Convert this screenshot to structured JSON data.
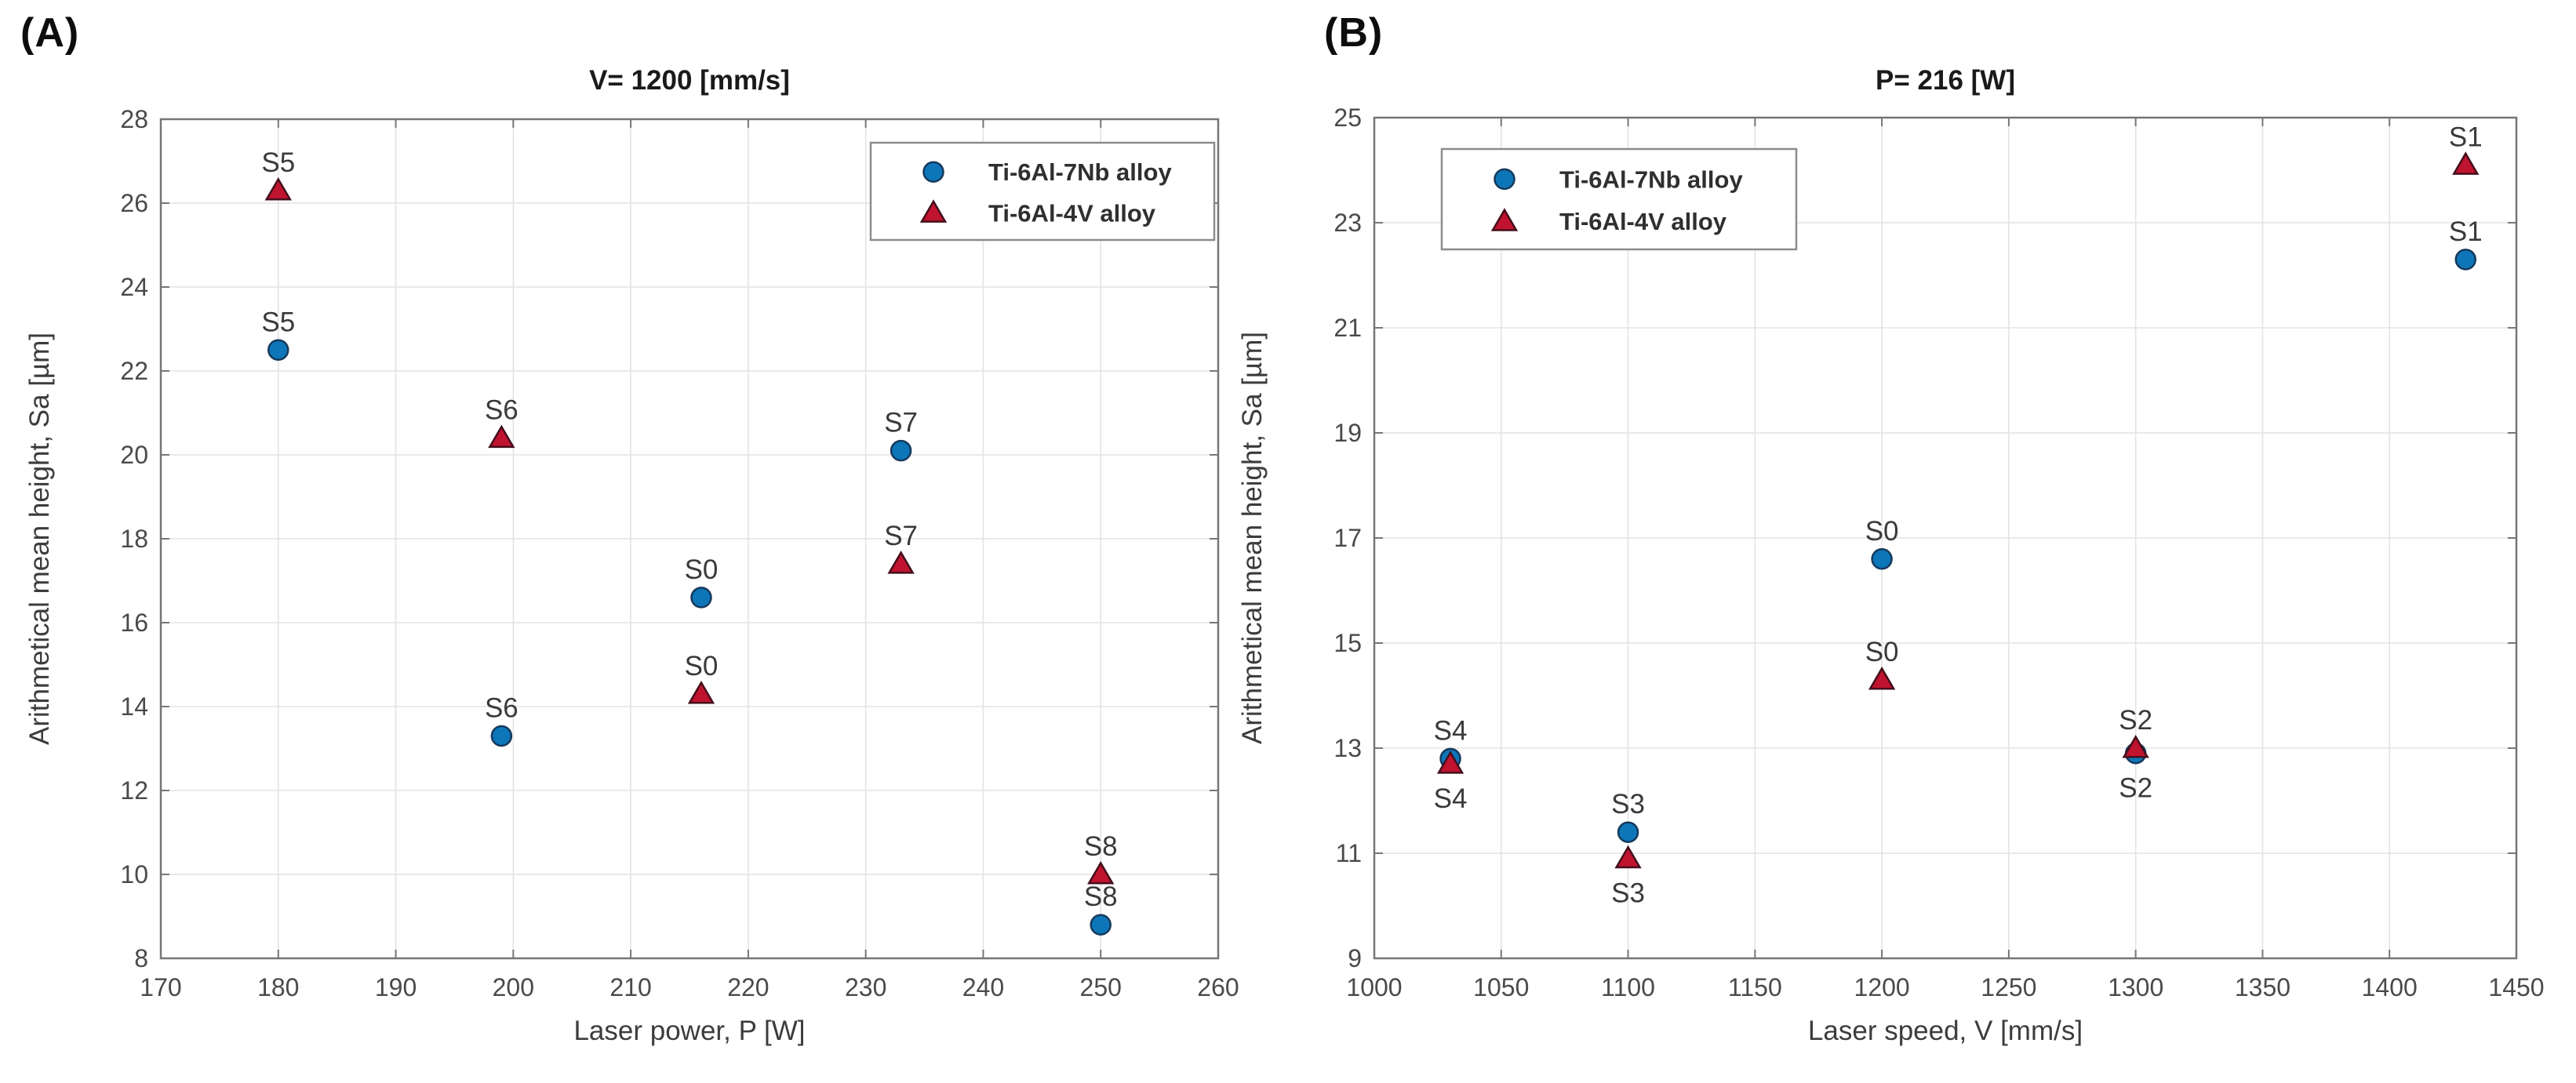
{
  "page": {
    "background": "#ffffff"
  },
  "colors": {
    "series_blue_fill": "#0d76b8",
    "series_blue_edge": "#15395c",
    "series_red_fill": "#c0132f",
    "series_red_edge": "#430e1a",
    "grid": "#e3e3e3",
    "axis": "#767676",
    "tick_text": "#4a4a4a",
    "axis_label_text": "#3c3c3c",
    "point_label_text": "#3a3a3a",
    "title_text": "#1a1a1a",
    "legend_border": "#8c8c8c",
    "legend_text": "#2f2f2f",
    "legend_fill": "#ffffff"
  },
  "chart_data": [
    {
      "id": "a",
      "panel_label": "(A)",
      "type": "scatter",
      "title": "V= 1200 [mm/s]",
      "xlabel": "Laser power, P [W]",
      "ylabel": "Arithmetical mean height, Sa [µm]",
      "xlim": [
        170,
        260
      ],
      "ylim": [
        8,
        28
      ],
      "xticks": [
        170,
        180,
        190,
        200,
        210,
        220,
        230,
        240,
        250,
        260
      ],
      "yticks": [
        8,
        10,
        12,
        14,
        16,
        18,
        20,
        22,
        24,
        26,
        28
      ],
      "grid": true,
      "legend_position": "top-right",
      "series": [
        {
          "name": "Ti-6Al-7Nb alloy",
          "marker": "circle",
          "fill": "#0d76b8",
          "edge": "#15395c",
          "points": [
            {
              "x": 180,
              "y": 22.5,
              "label": "S5",
              "label_pos": "above"
            },
            {
              "x": 199,
              "y": 13.3,
              "label": "S6",
              "label_pos": "above"
            },
            {
              "x": 216,
              "y": 16.6,
              "label": "S0",
              "label_pos": "above"
            },
            {
              "x": 233,
              "y": 20.1,
              "label": "S7",
              "label_pos": "above"
            },
            {
              "x": 250,
              "y": 8.8,
              "label": "S8",
              "label_pos": "above"
            }
          ]
        },
        {
          "name": "Ti-6Al-4V alloy",
          "marker": "triangle",
          "fill": "#c0132f",
          "edge": "#430e1a",
          "points": [
            {
              "x": 180,
              "y": 26.3,
              "label": "S5",
              "label_pos": "above"
            },
            {
              "x": 199,
              "y": 20.4,
              "label": "S6",
              "label_pos": "above"
            },
            {
              "x": 216,
              "y": 14.3,
              "label": "S0",
              "label_pos": "above"
            },
            {
              "x": 233,
              "y": 17.4,
              "label": "S7",
              "label_pos": "above"
            },
            {
              "x": 250,
              "y": 10.0,
              "label": "S8",
              "label_pos": "above"
            }
          ]
        }
      ]
    },
    {
      "id": "b",
      "panel_label": "(B)",
      "type": "scatter",
      "title": "P= 216 [W]",
      "xlabel": "Laser speed, V [mm/s]",
      "ylabel": "Arithmetical mean height, Sa [µm]",
      "xlim": [
        1000,
        1450
      ],
      "ylim": [
        9,
        25
      ],
      "xticks": [
        1000,
        1050,
        1100,
        1150,
        1200,
        1250,
        1300,
        1350,
        1400,
        1450
      ],
      "yticks": [
        9,
        11,
        13,
        15,
        17,
        19,
        21,
        23,
        25
      ],
      "grid": true,
      "legend_position": "top-left",
      "series": [
        {
          "name": "Ti-6Al-7Nb alloy",
          "marker": "circle",
          "fill": "#0d76b8",
          "edge": "#15395c",
          "points": [
            {
              "x": 1030,
              "y": 12.8,
              "label": "S4",
              "label_pos": "above"
            },
            {
              "x": 1100,
              "y": 11.4,
              "label": "S3",
              "label_pos": "above"
            },
            {
              "x": 1200,
              "y": 16.6,
              "label": "S0",
              "label_pos": "above"
            },
            {
              "x": 1300,
              "y": 12.9,
              "label": "S2",
              "label_pos": "below"
            },
            {
              "x": 1430,
              "y": 22.3,
              "label": "S1",
              "label_pos": "above"
            }
          ]
        },
        {
          "name": "Ti-6Al-4V alloy",
          "marker": "triangle",
          "fill": "#c0132f",
          "edge": "#430e1a",
          "points": [
            {
              "x": 1030,
              "y": 12.7,
              "label": "S4",
              "label_pos": "below"
            },
            {
              "x": 1100,
              "y": 10.9,
              "label": "S3",
              "label_pos": "below"
            },
            {
              "x": 1200,
              "y": 14.3,
              "label": "S0",
              "label_pos": "above"
            },
            {
              "x": 1300,
              "y": 13.0,
              "label": "S2",
              "label_pos": "above"
            },
            {
              "x": 1430,
              "y": 24.1,
              "label": "S1",
              "label_pos": "above"
            }
          ]
        }
      ]
    }
  ]
}
